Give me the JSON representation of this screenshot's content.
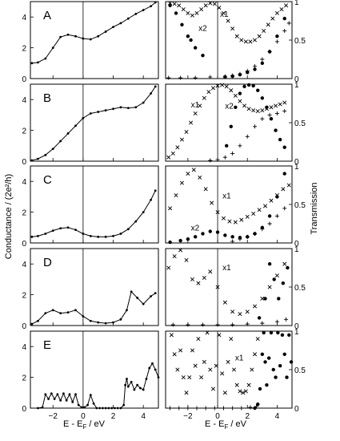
{
  "figure": {
    "ylabel_left": "Conductance / (2e²/h)",
    "ylabel_right": "Transmission",
    "xlabel": "E - E",
    "xlabel_sub": "F",
    "xlabel_unit": " / eV"
  },
  "chart_data": [
    {
      "type": "line",
      "panel": "A",
      "side": "conductance",
      "xlim": [
        -3.5,
        5
      ],
      "ylim": [
        0,
        5
      ],
      "xticks": [
        -2,
        0,
        2,
        4
      ],
      "yticks": [
        0,
        2,
        4
      ],
      "series": [
        {
          "x": [
            -3.4,
            -3,
            -2.5,
            -2,
            -1.5,
            -1,
            -0.5,
            0,
            0.5,
            1,
            1.5,
            2,
            2.5,
            3,
            3.5,
            4,
            4.5,
            4.8
          ],
          "y": [
            1.0,
            1.05,
            1.3,
            2.0,
            2.7,
            2.85,
            2.75,
            2.6,
            2.55,
            2.75,
            3.05,
            3.35,
            3.6,
            3.9,
            4.2,
            4.45,
            4.7,
            4.95
          ]
        }
      ]
    },
    {
      "type": "scatter",
      "panel": "A",
      "side": "transmission",
      "xlim": [
        -3.5,
        5
      ],
      "ylim": [
        0,
        1
      ],
      "xticks": [
        -2,
        0,
        2,
        4
      ],
      "yticks": [
        0,
        0.5,
        1
      ],
      "annotations": [
        "x2",
        "x1"
      ],
      "series": [
        {
          "marker": "x",
          "x": [
            -3.2,
            -2.9,
            -2.6,
            -2.3,
            -2,
            -1.7,
            -1.4,
            -1.1,
            -0.8,
            -0.5,
            -0.2,
            0.1,
            0.4,
            0.7,
            1.0,
            1.3,
            1.6,
            1.9,
            2.2,
            2.5,
            2.8,
            3.1,
            3.4,
            3.7,
            4.0,
            4.3,
            4.6
          ],
          "y": [
            0.98,
            0.97,
            0.95,
            0.9,
            0.85,
            0.82,
            0.85,
            0.9,
            0.95,
            0.98,
            0.97,
            0.92,
            0.85,
            0.75,
            0.65,
            0.55,
            0.5,
            0.48,
            0.48,
            0.5,
            0.55,
            0.62,
            0.7,
            0.78,
            0.85,
            0.9,
            0.95
          ]
        },
        {
          "marker": "dot",
          "x": [
            -3.2,
            -2.8,
            -2.4,
            -2,
            -1.8,
            -1.5,
            -1,
            0.5,
            1,
            1.5,
            2,
            2.5,
            3,
            3.5,
            4,
            4.5
          ],
          "y": [
            0.95,
            0.85,
            0.7,
            0.55,
            0.5,
            0.4,
            0.3,
            0.02,
            0.03,
            0.05,
            0.08,
            0.12,
            0.2,
            0.35,
            0.55,
            0.78
          ]
        },
        {
          "marker": "plus",
          "x": [
            -3.3,
            -2.5,
            -1.5,
            -0.5,
            0.5,
            1,
            1.5,
            2,
            2.5,
            3,
            3.5,
            4,
            4.5,
            4.8
          ],
          "y": [
            0.01,
            0.01,
            0.01,
            0.02,
            0.03,
            0.04,
            0.06,
            0.1,
            0.16,
            0.25,
            0.35,
            0.48,
            0.62,
            0.72
          ]
        }
      ]
    },
    {
      "type": "line",
      "panel": "B",
      "side": "conductance",
      "xlim": [
        -3.5,
        5
      ],
      "ylim": [
        0,
        5
      ],
      "xticks": [
        -2,
        0,
        2,
        4
      ],
      "yticks": [
        0,
        2,
        4
      ],
      "series": [
        {
          "x": [
            -3.4,
            -3,
            -2.5,
            -2,
            -1.5,
            -1,
            -0.5,
            0,
            0.5,
            1,
            1.5,
            2,
            2.5,
            3,
            3.5,
            4,
            4.5,
            4.8
          ],
          "y": [
            0.05,
            0.15,
            0.4,
            0.8,
            1.3,
            1.8,
            2.3,
            2.8,
            3.1,
            3.2,
            3.3,
            3.4,
            3.5,
            3.45,
            3.5,
            3.8,
            4.4,
            4.85
          ]
        }
      ]
    },
    {
      "type": "scatter",
      "panel": "B",
      "side": "transmission",
      "xlim": [
        -3.5,
        5
      ],
      "ylim": [
        0,
        1
      ],
      "xticks": [
        -2,
        0,
        2,
        4
      ],
      "yticks": [
        0,
        0.5,
        1
      ],
      "annotations": [
        "x1",
        "x2"
      ],
      "series": [
        {
          "marker": "x",
          "x": [
            -3.3,
            -3,
            -2.7,
            -2.4,
            -2.1,
            -1.8,
            -1.5,
            -1.2,
            -0.9,
            -0.6,
            -0.3,
            0,
            0.3,
            0.6,
            0.9,
            1.2,
            1.5,
            1.8,
            2.1,
            2.4,
            2.7,
            3,
            3.3,
            3.6,
            3.9,
            4.2,
            4.5
          ],
          "y": [
            0.05,
            0.1,
            0.18,
            0.28,
            0.38,
            0.5,
            0.62,
            0.72,
            0.82,
            0.9,
            0.95,
            0.98,
            0.99,
            0.97,
            0.92,
            0.85,
            0.78,
            0.72,
            0.68,
            0.66,
            0.65,
            0.66,
            0.68,
            0.7,
            0.72,
            0.74,
            0.76
          ]
        },
        {
          "marker": "dot",
          "x": [
            0.6,
            0.9,
            1.2,
            1.5,
            1.8,
            2.1,
            2.4,
            2.7,
            3.0,
            3.3,
            3.6,
            3.9,
            4.2,
            4.5
          ],
          "y": [
            0.2,
            0.45,
            0.7,
            0.88,
            0.97,
            0.99,
            0.98,
            0.92,
            0.82,
            0.7,
            0.55,
            0.4,
            0.28,
            0.18
          ]
        },
        {
          "marker": "plus",
          "x": [
            -0.5,
            0,
            0.5,
            1,
            1.5,
            2,
            2.5,
            3,
            3.5,
            4,
            4.5
          ],
          "y": [
            0.01,
            0.02,
            0.05,
            0.1,
            0.2,
            0.32,
            0.45,
            0.55,
            0.6,
            0.62,
            0.65
          ]
        }
      ]
    },
    {
      "type": "line",
      "panel": "C",
      "side": "conductance",
      "xlim": [
        -3.5,
        5
      ],
      "ylim": [
        0,
        5
      ],
      "xticks": [
        -2,
        0,
        2,
        4
      ],
      "yticks": [
        0,
        2,
        4
      ],
      "series": [
        {
          "x": [
            -3.4,
            -3,
            -2.5,
            -2,
            -1.5,
            -1,
            -0.5,
            0,
            0.5,
            1,
            1.5,
            2,
            2.5,
            3,
            3.5,
            4,
            4.5,
            4.8
          ],
          "y": [
            0.4,
            0.45,
            0.6,
            0.8,
            0.95,
            1.0,
            0.85,
            0.6,
            0.45,
            0.4,
            0.4,
            0.45,
            0.6,
            0.9,
            1.4,
            2.0,
            2.8,
            3.4
          ]
        }
      ]
    },
    {
      "type": "scatter",
      "panel": "C",
      "side": "transmission",
      "xlim": [
        -3.5,
        5
      ],
      "ylim": [
        0,
        1
      ],
      "xticks": [
        -2,
        0,
        2,
        4
      ],
      "yticks": [
        0,
        0.5,
        1
      ],
      "annotations": [
        "x1",
        "x2"
      ],
      "series": [
        {
          "marker": "x",
          "x": [
            -3.2,
            -2.8,
            -2.4,
            -2,
            -1.6,
            -1.2,
            -0.8,
            -0.4,
            0,
            0.4,
            0.8,
            1.2,
            1.6,
            2,
            2.4,
            2.8,
            3.2,
            3.6,
            4,
            4.4,
            4.8
          ],
          "y": [
            0.45,
            0.62,
            0.78,
            0.9,
            0.95,
            0.85,
            0.7,
            0.52,
            0.4,
            0.32,
            0.28,
            0.27,
            0.3,
            0.34,
            0.38,
            0.43,
            0.48,
            0.55,
            0.62,
            0.7,
            0.75
          ]
        },
        {
          "marker": "dot",
          "x": [
            -3.2,
            -2.5,
            -2,
            -1.5,
            -1,
            -0.5,
            0,
            0.5,
            1,
            1.5,
            2,
            2.5,
            3,
            3.5,
            4,
            4.5
          ],
          "y": [
            0.01,
            0.03,
            0.05,
            0.08,
            0.12,
            0.15,
            0.14,
            0.1,
            0.08,
            0.07,
            0.08,
            0.12,
            0.2,
            0.35,
            0.6,
            0.9
          ]
        },
        {
          "marker": "plus",
          "x": [
            1,
            1.5,
            2,
            2.5,
            3,
            3.5,
            4,
            4.5
          ],
          "y": [
            0.02,
            0.05,
            0.08,
            0.12,
            0.18,
            0.25,
            0.35,
            0.45
          ]
        }
      ]
    },
    {
      "type": "line",
      "panel": "D",
      "side": "conductance",
      "xlim": [
        -3.5,
        5
      ],
      "ylim": [
        0,
        5
      ],
      "xticks": [
        -2,
        0,
        2,
        4
      ],
      "yticks": [
        0,
        2,
        4
      ],
      "series": [
        {
          "x": [
            -3.4,
            -3,
            -2.5,
            -2,
            -1.5,
            -1,
            -0.5,
            0,
            0.5,
            1,
            1.5,
            2,
            2.5,
            2.9,
            3.2,
            3.6,
            4,
            4.5,
            4.8
          ],
          "y": [
            0.1,
            0.3,
            0.8,
            1.0,
            0.8,
            0.85,
            1.0,
            0.6,
            0.3,
            0.2,
            0.15,
            0.2,
            0.4,
            1.0,
            2.2,
            1.8,
            1.4,
            1.9,
            2.1
          ]
        }
      ]
    },
    {
      "type": "scatter",
      "panel": "D",
      "side": "transmission",
      "xlim": [
        -3.5,
        5
      ],
      "ylim": [
        0,
        1
      ],
      "xticks": [
        -2,
        0,
        2,
        4
      ],
      "yticks": [
        0,
        0.5,
        1
      ],
      "annotations": [
        "x1"
      ],
      "series": [
        {
          "marker": "x",
          "x": [
            -3.3,
            -2.9,
            -2.5,
            -2.1,
            -1.7,
            -1.3,
            -0.9,
            -0.5,
            0,
            0.5,
            1,
            1.5,
            2,
            2.5,
            3,
            3.5,
            4,
            4.5
          ],
          "y": [
            0.75,
            0.9,
            0.98,
            0.85,
            0.6,
            0.55,
            0.62,
            0.7,
            0.5,
            0.3,
            0.18,
            0.15,
            0.18,
            0.25,
            0.35,
            0.5,
            0.65,
            0.8
          ]
        },
        {
          "marker": "dot",
          "x": [
            2.8,
            3.2,
            3.5,
            3.8,
            4.1,
            4.4,
            4.7
          ],
          "y": [
            0.1,
            0.35,
            0.8,
            0.6,
            0.35,
            0.55,
            0.75
          ]
        },
        {
          "marker": "plus",
          "x": [
            -3,
            -2,
            -1,
            0,
            1,
            2,
            3,
            4,
            4.6
          ],
          "y": [
            0.01,
            0.01,
            0.01,
            0.01,
            0.01,
            0.02,
            0.03,
            0.05,
            0.08
          ]
        }
      ]
    },
    {
      "type": "line",
      "panel": "E",
      "side": "conductance",
      "xlim": [
        -3.5,
        5
      ],
      "ylim": [
        0,
        5
      ],
      "xticks": [
        -2,
        0,
        2,
        4
      ],
      "yticks": [
        0,
        2,
        4
      ],
      "series": [
        {
          "x": [
            -3.0,
            -2.7,
            -2.5,
            -2.3,
            -2.1,
            -1.9,
            -1.7,
            -1.5,
            -1.3,
            -1.1,
            -0.9,
            -0.7,
            -0.5,
            -0.3,
            -0.1,
            0.1,
            0.3,
            0.5,
            0.7,
            0.9,
            1.1,
            1.3,
            1.5,
            1.7,
            1.9,
            2.1,
            2.3,
            2.5,
            2.7,
            2.8,
            2.9,
            3.0,
            3.2,
            3.4,
            3.6,
            3.8,
            4.0,
            4.2,
            4.4,
            4.6,
            4.8,
            5.0
          ],
          "y": [
            0.0,
            0.05,
            0.9,
            0.6,
            0.95,
            0.6,
            0.9,
            0.5,
            0.95,
            0.5,
            0.9,
            0.4,
            0.9,
            0.2,
            0.05,
            0.05,
            0.2,
            0.85,
            0.3,
            0.0,
            0.0,
            0.0,
            0.0,
            0.0,
            0.0,
            0.0,
            0.0,
            0.0,
            0.2,
            1.5,
            1.9,
            1.4,
            1.7,
            1.2,
            1.5,
            1.3,
            1.2,
            1.9,
            2.6,
            2.9,
            2.5,
            2.0
          ]
        }
      ]
    },
    {
      "type": "scatter",
      "panel": "E",
      "side": "transmission",
      "xlim": [
        -3.5,
        5
      ],
      "ylim": [
        0,
        1
      ],
      "xticks": [
        -2,
        0,
        2,
        4
      ],
      "yticks": [
        0,
        0.5,
        1
      ],
      "annotations": [
        "x1"
      ],
      "series": [
        {
          "marker": "x",
          "x": [
            -3.1,
            -2.9,
            -2.7,
            -2.5,
            -2.3,
            -2.1,
            -1.9,
            -1.7,
            -1.5,
            -1.3,
            -1.1,
            -0.9,
            -0.7,
            -0.5,
            -0.3,
            -0.1,
            0.1,
            0.3,
            0.5,
            0.7,
            0.9,
            1.1,
            1.3,
            1.5,
            1.7,
            1.9,
            2.1,
            2.3,
            2.5,
            2.7
          ],
          "y": [
            0.95,
            0.7,
            0.5,
            0.75,
            0.4,
            0.2,
            0.4,
            0.75,
            0.55,
            0.9,
            0.4,
            0.6,
            0.98,
            0.5,
            0.25,
            0.55,
            0.95,
            0.45,
            0.2,
            0.6,
            0.9,
            0.5,
            0.3,
            0.22,
            0.2,
            0.22,
            0.3,
            0.5,
            0.7,
            0.9
          ]
        },
        {
          "marker": "dot",
          "x": [
            2.5,
            2.7,
            2.85,
            3.0,
            3.1,
            3.2,
            3.3,
            3.45,
            3.6,
            3.75,
            3.9,
            4.05,
            4.2,
            4.35,
            4.5,
            4.65,
            4.8,
            4.95
          ],
          "y": [
            0.0,
            0.05,
            0.25,
            0.7,
            0.98,
            0.6,
            0.3,
            0.65,
            0.98,
            0.5,
            0.4,
            0.98,
            0.55,
            0.95,
            0.7,
            0.4,
            0.95,
            0.6
          ]
        },
        {
          "marker": "plus",
          "x": [
            -3.2,
            -2.6,
            -2,
            -1.4,
            -0.8,
            -0.2,
            0.4,
            1,
            1.6,
            2.2,
            2.6
          ],
          "y": [
            0.0,
            0.0,
            0.0,
            0.0,
            0.0,
            0.0,
            0.0,
            0.0,
            0.0,
            0.01,
            0.02
          ]
        }
      ]
    }
  ]
}
